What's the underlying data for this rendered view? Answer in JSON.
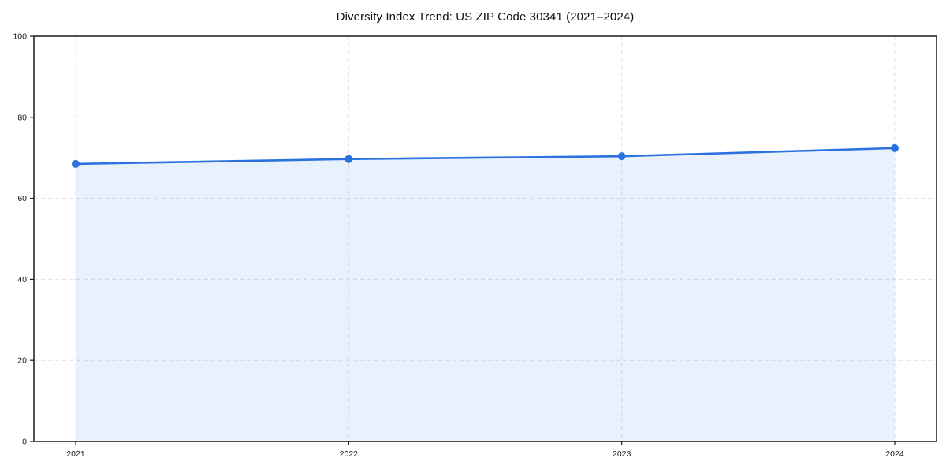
{
  "chart_data": {
    "type": "area",
    "title": "Diversity Index Trend: US ZIP Code 30341 (2021–2024)",
    "x": [
      2021,
      2022,
      2023,
      2024
    ],
    "xtick_labels": [
      "2021",
      "2022",
      "2023",
      "2024"
    ],
    "series": [
      {
        "name": "Diversity Index",
        "values": [
          68.5,
          69.7,
          70.4,
          72.4
        ]
      }
    ],
    "xlabel": "",
    "ylabel": "",
    "ylim": [
      0,
      100
    ],
    "yticks": [
      0,
      20,
      40,
      60,
      80,
      100
    ],
    "grid": true,
    "grid_style": "dashed",
    "legend_position": "none",
    "marker": "circle",
    "colors": {
      "line": "#2b72e0",
      "marker": "#2b72e0",
      "fill": "rgba(43,114,224,0.10)",
      "grid": "#e0e0e0",
      "spine": "#1a1a1a",
      "tick_text": "#1a1a1a",
      "title_text": "#111111",
      "background": "#ffffff"
    }
  }
}
